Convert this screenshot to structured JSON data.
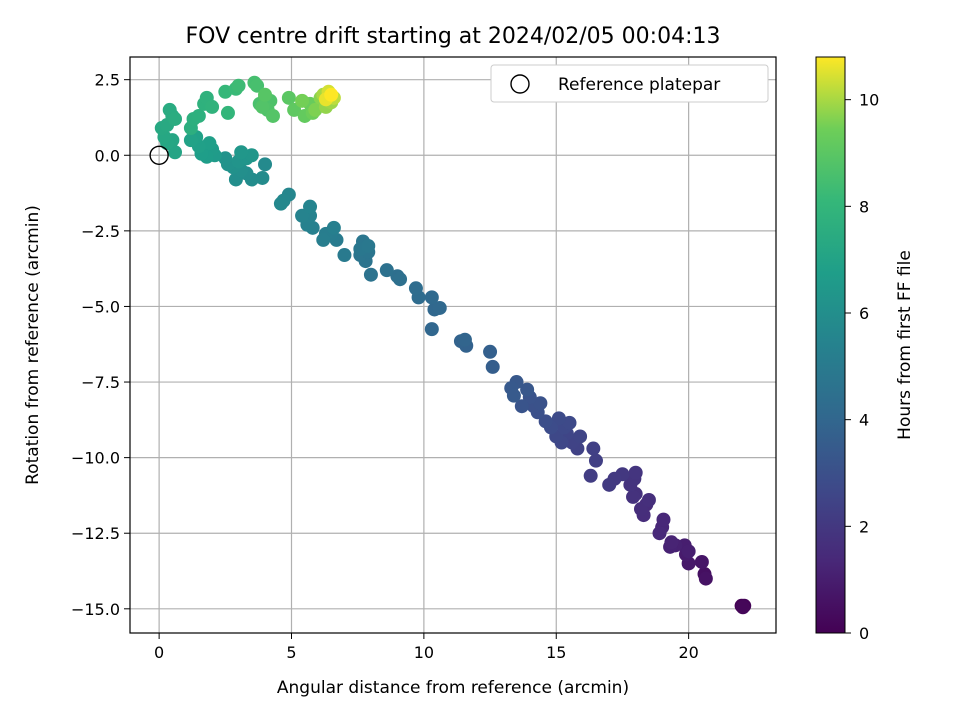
{
  "chart_data": {
    "type": "scatter",
    "title": "FOV centre drift starting at 2024/02/05 00:04:13",
    "xlabel": "Angular distance from reference (arcmin)",
    "ylabel": "Rotation from reference (arcmin)",
    "xlim": [
      -1.1,
      23.3
    ],
    "ylim": [
      -15.8,
      3.25
    ],
    "xticks": [
      0,
      5,
      10,
      15,
      20
    ],
    "yticks": [
      2.5,
      0.0,
      -2.5,
      -5.0,
      -7.5,
      -10.0,
      -12.5,
      -15.0
    ],
    "xtick_labels": [
      "0",
      "5",
      "10",
      "15",
      "20"
    ],
    "ytick_labels": [
      "2.5",
      "0.0",
      "−2.5",
      "−5.0",
      "−7.5",
      "−10.0",
      "−12.5",
      "−15.0"
    ],
    "grid": true,
    "legend": {
      "location": "upper right",
      "label": "Reference platepar"
    },
    "reference_point": {
      "x": 0,
      "y": 0
    },
    "colorbar": {
      "label": "Hours from first FF file",
      "colormap": "viridis",
      "range": [
        0,
        10.8
      ],
      "ticks": [
        0,
        2,
        4,
        6,
        8,
        10
      ],
      "tick_labels": [
        "0",
        "2",
        "4",
        "6",
        "8",
        "10"
      ]
    },
    "series": [
      {
        "points": [
          [
            22.0,
            -14.9,
            0.0
          ],
          [
            22.1,
            -14.9,
            0.1
          ],
          [
            22.05,
            -14.95,
            0.2
          ],
          [
            20.6,
            -13.85,
            0.5
          ],
          [
            20.65,
            -14.0,
            0.6
          ],
          [
            20.5,
            -13.45,
            0.7
          ],
          [
            20.0,
            -13.5,
            0.8
          ],
          [
            19.9,
            -13.2,
            0.9
          ],
          [
            19.85,
            -12.9,
            1.0
          ],
          [
            20.0,
            -13.1,
            1.05
          ],
          [
            19.5,
            -12.9,
            1.1
          ],
          [
            19.3,
            -12.95,
            1.15
          ],
          [
            19.35,
            -12.8,
            1.2
          ],
          [
            19.0,
            -12.3,
            1.3
          ],
          [
            19.05,
            -12.05,
            1.35
          ],
          [
            18.9,
            -12.5,
            1.4
          ],
          [
            18.4,
            -11.55,
            1.5
          ],
          [
            18.3,
            -11.9,
            1.55
          ],
          [
            18.2,
            -11.7,
            1.6
          ],
          [
            18.5,
            -11.4,
            1.65
          ],
          [
            18.0,
            -11.2,
            1.7
          ],
          [
            17.9,
            -11.3,
            1.75
          ],
          [
            17.8,
            -10.9,
            1.8
          ],
          [
            17.95,
            -10.7,
            1.85
          ],
          [
            18.0,
            -10.5,
            1.9
          ],
          [
            17.5,
            -10.55,
            2.0
          ],
          [
            17.2,
            -10.7,
            2.05
          ],
          [
            17.0,
            -10.9,
            2.1
          ],
          [
            16.3,
            -10.6,
            2.2
          ],
          [
            16.5,
            -10.1,
            2.3
          ],
          [
            16.4,
            -9.7,
            2.35
          ],
          [
            15.8,
            -9.7,
            2.4
          ],
          [
            15.6,
            -9.5,
            2.45
          ],
          [
            15.9,
            -9.3,
            2.5
          ],
          [
            15.4,
            -9.2,
            2.55
          ],
          [
            15.2,
            -9.5,
            2.6
          ],
          [
            15.0,
            -9.3,
            2.65
          ],
          [
            15.3,
            -9.0,
            2.7
          ],
          [
            15.5,
            -8.85,
            2.75
          ],
          [
            15.1,
            -8.7,
            2.8
          ],
          [
            14.8,
            -9.0,
            2.85
          ],
          [
            14.6,
            -8.8,
            2.9
          ],
          [
            14.3,
            -8.5,
            3.0
          ],
          [
            14.15,
            -8.3,
            3.05
          ],
          [
            14.4,
            -8.2,
            3.1
          ],
          [
            14.0,
            -8.0,
            3.15
          ],
          [
            13.7,
            -8.3,
            3.2
          ],
          [
            13.9,
            -7.75,
            3.3
          ],
          [
            13.5,
            -7.5,
            3.35
          ],
          [
            13.3,
            -7.7,
            3.4
          ],
          [
            13.4,
            -7.95,
            3.45
          ],
          [
            12.6,
            -7.0,
            3.6
          ],
          [
            12.5,
            -6.5,
            3.7
          ],
          [
            11.6,
            -6.3,
            3.8
          ],
          [
            11.4,
            -6.15,
            3.85
          ],
          [
            11.55,
            -6.1,
            3.9
          ],
          [
            10.3,
            -5.75,
            4.0
          ],
          [
            10.4,
            -5.1,
            4.05
          ],
          [
            10.6,
            -5.05,
            4.1
          ],
          [
            10.3,
            -4.7,
            4.15
          ],
          [
            9.8,
            -4.7,
            4.25
          ],
          [
            9.7,
            -4.4,
            4.3
          ],
          [
            9.0,
            -4.0,
            4.4
          ],
          [
            9.1,
            -4.1,
            4.45
          ],
          [
            8.6,
            -3.8,
            4.5
          ],
          [
            8.0,
            -3.95,
            4.6
          ],
          [
            7.8,
            -3.5,
            4.65
          ],
          [
            7.6,
            -3.3,
            4.7
          ],
          [
            7.9,
            -3.2,
            4.75
          ],
          [
            7.7,
            -2.85,
            4.8
          ],
          [
            7.6,
            -3.1,
            4.85
          ],
          [
            7.9,
            -3.0,
            4.9
          ],
          [
            7.0,
            -3.3,
            5.0
          ],
          [
            6.7,
            -2.8,
            5.05
          ],
          [
            6.5,
            -2.6,
            5.1
          ],
          [
            6.3,
            -2.6,
            5.15
          ],
          [
            6.2,
            -2.8,
            5.2
          ],
          [
            6.6,
            -2.4,
            5.25
          ],
          [
            5.8,
            -2.4,
            5.3
          ],
          [
            5.6,
            -2.3,
            5.35
          ],
          [
            5.7,
            -2.0,
            5.4
          ],
          [
            5.4,
            -2.0,
            5.45
          ],
          [
            5.7,
            -1.7,
            5.5
          ],
          [
            4.9,
            -1.3,
            5.6
          ],
          [
            4.7,
            -1.5,
            5.65
          ],
          [
            4.6,
            -1.6,
            5.7
          ],
          [
            4.0,
            -0.3,
            5.8
          ],
          [
            3.9,
            -0.75,
            5.85
          ],
          [
            3.5,
            -0.8,
            5.9
          ],
          [
            3.3,
            -0.6,
            5.95
          ],
          [
            2.9,
            -0.8,
            6.0
          ],
          [
            3.1,
            -0.5,
            6.05
          ],
          [
            2.8,
            -0.4,
            6.1
          ],
          [
            2.6,
            -0.3,
            6.15
          ],
          [
            2.5,
            -0.1,
            6.2
          ],
          [
            3.0,
            -0.2,
            6.25
          ],
          [
            3.3,
            -0.1,
            6.3
          ],
          [
            3.5,
            0.0,
            6.35
          ],
          [
            3.1,
            0.1,
            6.4
          ],
          [
            2.1,
            0.0,
            6.6
          ],
          [
            2.0,
            0.2,
            6.65
          ],
          [
            1.8,
            -0.05,
            6.7
          ],
          [
            1.6,
            0.05,
            6.75
          ],
          [
            1.9,
            0.4,
            6.8
          ],
          [
            1.5,
            0.3,
            6.85
          ],
          [
            1.4,
            0.6,
            6.9
          ],
          [
            1.2,
            0.5,
            6.95
          ],
          [
            0.6,
            0.1,
            7.1
          ],
          [
            0.5,
            0.5,
            7.15
          ],
          [
            0.3,
            0.4,
            7.2
          ],
          [
            0.2,
            0.6,
            7.25
          ],
          [
            0.1,
            0.9,
            7.3
          ],
          [
            0.3,
            1.0,
            7.35
          ],
          [
            0.5,
            1.3,
            7.4
          ],
          [
            0.4,
            1.5,
            7.45
          ],
          [
            0.6,
            1.2,
            7.5
          ],
          [
            1.2,
            0.9,
            7.6
          ],
          [
            1.3,
            1.2,
            7.65
          ],
          [
            1.5,
            1.3,
            7.7
          ],
          [
            1.7,
            1.7,
            7.75
          ],
          [
            1.8,
            1.9,
            7.8
          ],
          [
            2.0,
            1.6,
            7.85
          ],
          [
            2.6,
            1.4,
            8.0
          ],
          [
            2.5,
            2.1,
            8.1
          ],
          [
            2.9,
            2.2,
            8.2
          ],
          [
            3.0,
            2.3,
            8.3
          ],
          [
            3.6,
            2.4,
            8.5
          ],
          [
            3.7,
            2.3,
            8.55
          ],
          [
            3.8,
            1.7,
            8.6
          ],
          [
            4.0,
            1.9,
            8.65
          ],
          [
            4.2,
            1.8,
            8.7
          ],
          [
            4.1,
            1.5,
            8.75
          ],
          [
            3.9,
            1.6,
            8.8
          ],
          [
            4.3,
            1.3,
            8.85
          ],
          [
            4.0,
            2.0,
            8.9
          ],
          [
            4.9,
            1.9,
            9.0
          ],
          [
            5.1,
            1.5,
            9.1
          ],
          [
            5.5,
            1.3,
            9.2
          ],
          [
            5.7,
            1.7,
            9.3
          ],
          [
            5.8,
            1.4,
            9.4
          ],
          [
            5.4,
            1.8,
            9.5
          ],
          [
            5.9,
            1.5,
            9.6
          ],
          [
            6.1,
            1.9,
            9.7
          ],
          [
            6.3,
            1.6,
            9.8
          ],
          [
            6.5,
            1.75,
            9.9
          ],
          [
            6.2,
            2.0,
            10.0
          ],
          [
            6.6,
            1.9,
            10.2
          ],
          [
            6.4,
            2.1,
            10.4
          ],
          [
            6.3,
            1.85,
            10.6
          ],
          [
            6.5,
            2.0,
            10.8
          ]
        ]
      }
    ]
  }
}
